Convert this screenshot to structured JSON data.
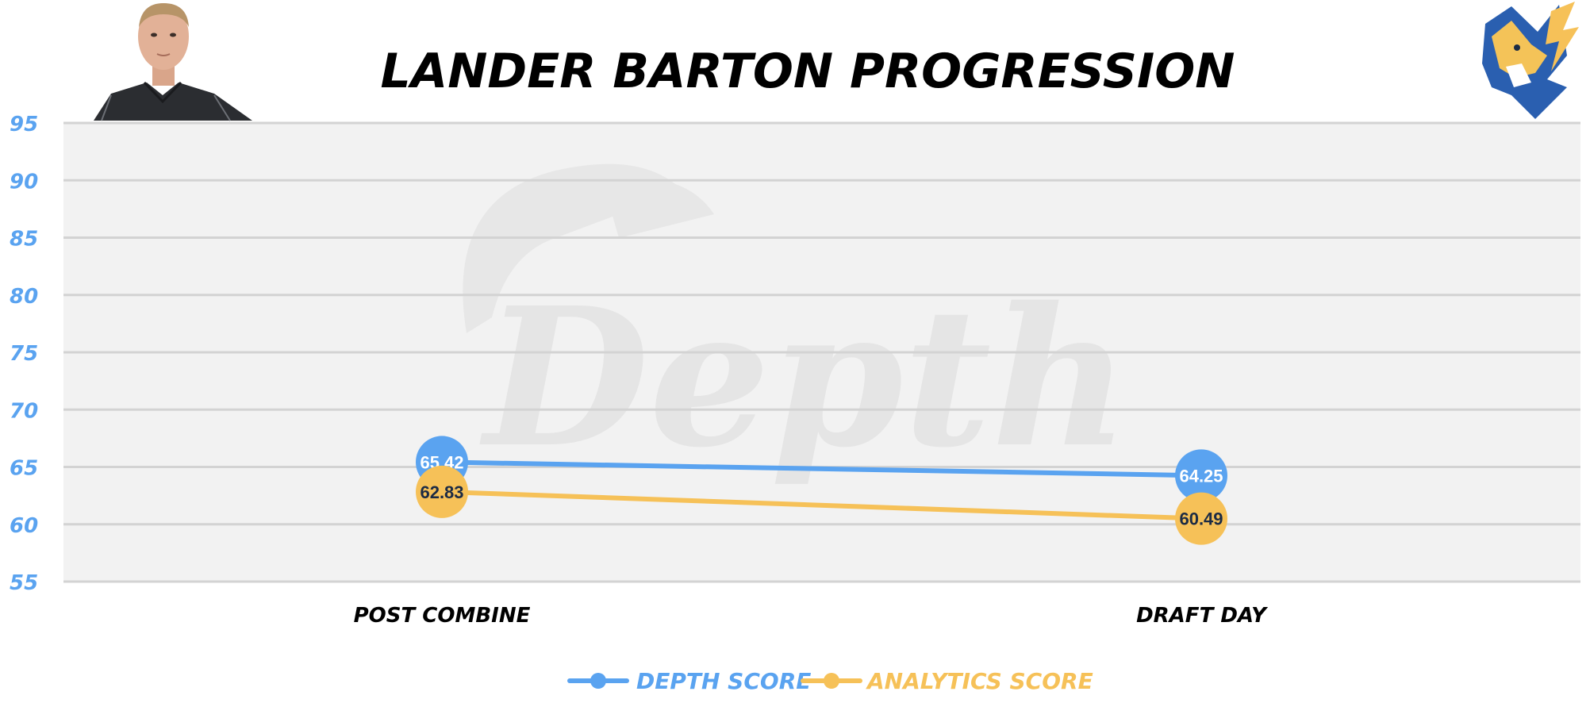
{
  "colors": {
    "depth": "#5aa3f0",
    "analytics": "#f6c158",
    "plot_bg": "#f2f2f2",
    "grid": "#d3d3d3",
    "axis_text": "#5aa3f0",
    "label_text_analytics": "#1c2b44",
    "label_text_depth": "#ffffff"
  },
  "images": {
    "player_photo": "player-headshot",
    "team_logo": "wolf-mascot-logo",
    "watermark": "depth-watermark-logo"
  },
  "chart_data": {
    "type": "line",
    "title": "LANDER BARTON PROGRESSION",
    "categories": [
      "POST COMBINE",
      "DRAFT DAY"
    ],
    "series": [
      {
        "name": "DEPTH SCORE",
        "values": [
          65.42,
          64.25
        ],
        "color": "#5aa3f0"
      },
      {
        "name": "ANALYTICS SCORE",
        "values": [
          62.83,
          60.49
        ],
        "color": "#f6c158"
      }
    ],
    "ylim": [
      55,
      95
    ],
    "yticks": [
      95,
      90,
      85,
      80,
      75,
      70,
      65,
      60,
      55
    ],
    "grid": true,
    "legend_position": "bottom-center"
  }
}
